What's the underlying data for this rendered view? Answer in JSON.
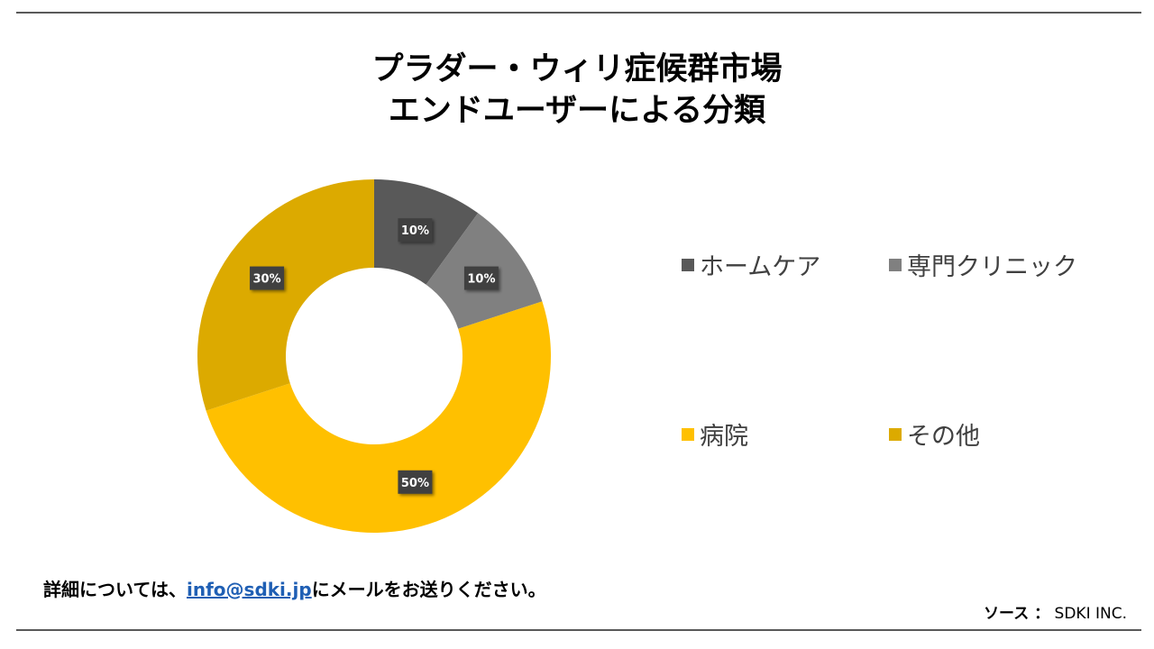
{
  "title": {
    "line1": "プラダー・ウィリ症候群市場",
    "line2": "エンドユーザーによる分類"
  },
  "chart_data": {
    "type": "pie",
    "style": "donut",
    "title": "プラダー・ウィリ症候群市場 エンドユーザーによる分類",
    "categories": [
      "ホームケア",
      "専門クリニック",
      "病院",
      "その他"
    ],
    "values": [
      10,
      10,
      50,
      30
    ],
    "labels": [
      "10%",
      "10%",
      "50%",
      "30%"
    ],
    "colors": [
      "#595959",
      "#808080",
      "#FFC000",
      "#DCAA00"
    ],
    "legend_position": "right"
  },
  "legend": {
    "items": [
      {
        "label": "ホームケア",
        "color": "#595959"
      },
      {
        "label": "専門クリニック",
        "color": "#808080"
      },
      {
        "label": "病院",
        "color": "#FFC000"
      },
      {
        "label": "その他",
        "color": "#DCAA00"
      }
    ]
  },
  "footer": {
    "prefix": "詳細については、",
    "email": "info@sdki.jp",
    "suffix": "にメールをお送りください。"
  },
  "source": {
    "label": "ソース ：",
    "value": "SDKI INC."
  }
}
